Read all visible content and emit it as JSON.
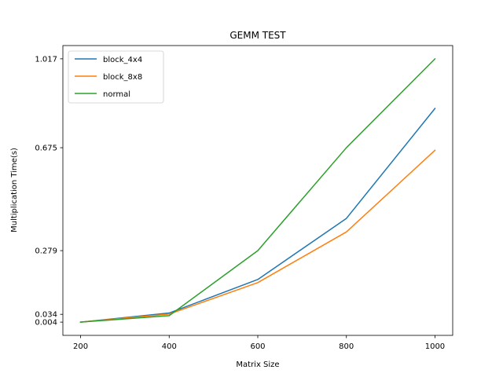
{
  "chart_data": {
    "type": "line",
    "title": "GEMM TEST",
    "xlabel": "Matrix Size",
    "ylabel": "Multiplication Time(s)",
    "x": [
      200,
      400,
      600,
      800,
      1000
    ],
    "xticks": [
      "200",
      "400",
      "600",
      "800",
      "1000"
    ],
    "yticks": [
      0.004,
      0.034,
      0.279,
      0.675,
      1.017
    ],
    "ytick_labels": [
      "0.004",
      "0.034",
      "0.279",
      "0.675",
      "1.017"
    ],
    "xlim": [
      160,
      1040
    ],
    "ylim": [
      -0.047,
      1.068
    ],
    "grid": false,
    "legend_position": "top-left",
    "series": [
      {
        "name": "block_4x4",
        "color": "#1f77b4",
        "values": [
          0.004,
          0.039,
          0.168,
          0.403,
          0.826
        ]
      },
      {
        "name": "block_8x8",
        "color": "#ff7f0e",
        "values": [
          0.004,
          0.035,
          0.156,
          0.351,
          0.665
        ]
      },
      {
        "name": "normal",
        "color": "#2ca02c",
        "values": [
          0.004,
          0.029,
          0.279,
          0.675,
          1.017
        ]
      }
    ]
  }
}
